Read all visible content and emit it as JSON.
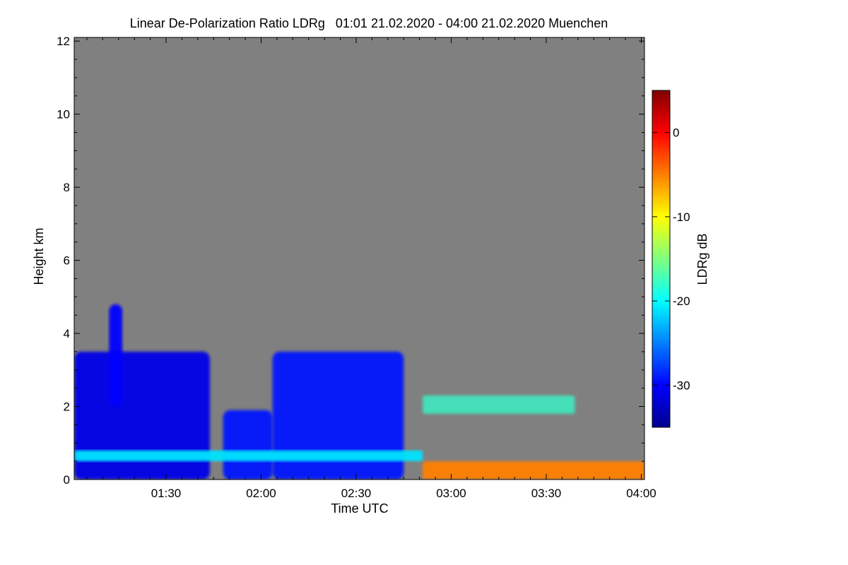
{
  "chart_data": {
    "type": "heatmap",
    "title": "Linear De-Polarization Ratio LDRg   01:01 21.02.2020 - 04:00 21.02.2020 Muenchen",
    "xlabel": "Time UTC",
    "ylabel": "Height km",
    "xlim_hours": [
      1.0167,
      4.0167
    ],
    "ylim": [
      0,
      12.1
    ],
    "x_ticks": [
      {
        "value": 1.5,
        "label": "01:30"
      },
      {
        "value": 2.0,
        "label": "02:00"
      },
      {
        "value": 2.5,
        "label": "02:30"
      },
      {
        "value": 3.0,
        "label": "03:00"
      },
      {
        "value": 3.5,
        "label": "03:30"
      },
      {
        "value": 4.0,
        "label": "04:00"
      }
    ],
    "y_ticks": [
      0,
      2,
      4,
      6,
      8,
      10,
      12
    ],
    "y_tick_labels": [
      "0",
      "2",
      "4",
      "6",
      "8",
      "10",
      "12"
    ],
    "colorbar": {
      "label": "LDRg dB",
      "range": [
        -35,
        5
      ],
      "ticks": [
        0,
        -10,
        -20,
        -30
      ],
      "tick_labels": [
        "0",
        "-10",
        "-20",
        "-30"
      ],
      "colormap": "jet"
    },
    "background_color": "#808080",
    "features": [
      {
        "name": "cloud-block-1",
        "t_start": 1.017,
        "t_end": 1.73,
        "h_bottom": 0.0,
        "h_top": 3.5,
        "ldr_db": -31
      },
      {
        "name": "cloud-peak",
        "t_start": 1.2,
        "t_end": 1.27,
        "h_bottom": 2.0,
        "h_top": 4.8,
        "ldr_db": -30
      },
      {
        "name": "cloud-block-2",
        "t_start": 1.8,
        "t_end": 2.06,
        "h_bottom": 0.0,
        "h_top": 1.9,
        "ldr_db": -29
      },
      {
        "name": "cloud-block-3",
        "t_start": 2.06,
        "t_end": 2.75,
        "h_bottom": 0.0,
        "h_top": 3.5,
        "ldr_db": -29
      },
      {
        "name": "low-layer",
        "t_start": 1.017,
        "t_end": 2.85,
        "h_bottom": 0.5,
        "h_top": 0.8,
        "ldr_db": -21
      },
      {
        "name": "mid-layer",
        "t_start": 2.85,
        "t_end": 3.65,
        "h_bottom": 1.8,
        "h_top": 2.3,
        "ldr_db": -18
      },
      {
        "name": "surface-layer",
        "t_start": 2.85,
        "t_end": 4.0167,
        "h_bottom": 0.0,
        "h_top": 0.5,
        "ldr_db": -5
      }
    ]
  }
}
